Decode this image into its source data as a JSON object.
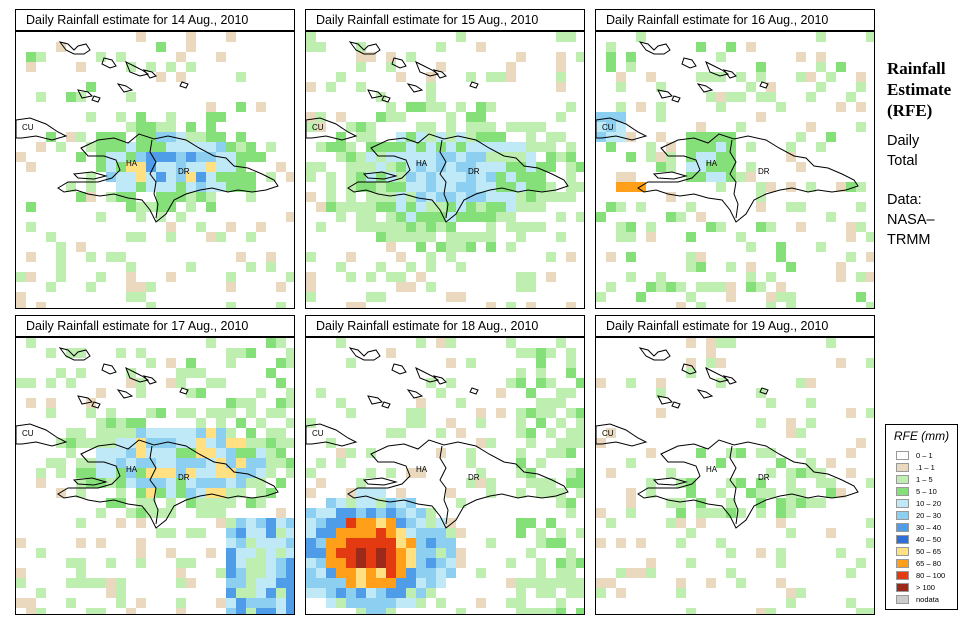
{
  "panels": [
    {
      "title": "Daily Rainfall estimate for  14 Aug., 2010",
      "pattern": "p14"
    },
    {
      "title": "Daily Rainfall estimate for  15 Aug., 2010",
      "pattern": "p15"
    },
    {
      "title": "Daily Rainfall estimate for  16 Aug., 2010",
      "pattern": "p16"
    },
    {
      "title": "Daily Rainfall estimate for  17 Aug., 2010",
      "pattern": "p17"
    },
    {
      "title": "Daily Rainfall estimate for  18 Aug., 2010",
      "pattern": "p18"
    },
    {
      "title": "Daily Rainfall estimate for  19 Aug., 2010",
      "pattern": "p19"
    }
  ],
  "map_labels": {
    "cuba": "CU",
    "haiti": "HA",
    "dominican_republic": "DR"
  },
  "side": {
    "title_lines": [
      "Rainfall",
      "Estimate",
      "(RFE)"
    ],
    "period_lines": [
      "Daily",
      "Total"
    ],
    "source_lines": [
      "Data:",
      "NASA–",
      "TRMM"
    ]
  },
  "legend": {
    "title": "RFE (mm)",
    "items": [
      {
        "label": "0 – 1",
        "color": "#ffffff"
      },
      {
        "label": ".1 – 1",
        "color": "#ead9bf"
      },
      {
        "label": "1 – 5",
        "color": "#bfefb0"
      },
      {
        "label": "5 – 10",
        "color": "#86e07a"
      },
      {
        "label": "10 – 20",
        "color": "#bfe9f7"
      },
      {
        "label": "20 – 30",
        "color": "#8ccff0"
      },
      {
        "label": "30 – 40",
        "color": "#4f9de8"
      },
      {
        "label": "40 – 50",
        "color": "#2f6ed8"
      },
      {
        "label": "50 – 65",
        "color": "#ffe082"
      },
      {
        "label": "65 – 80",
        "color": "#ff9f1a"
      },
      {
        "label": "80 – 100",
        "color": "#e33a12"
      },
      {
        "label": "> 100",
        "color": "#9c2a1a"
      },
      {
        "label": "nodata",
        "color": "#cccccc"
      }
    ]
  }
}
